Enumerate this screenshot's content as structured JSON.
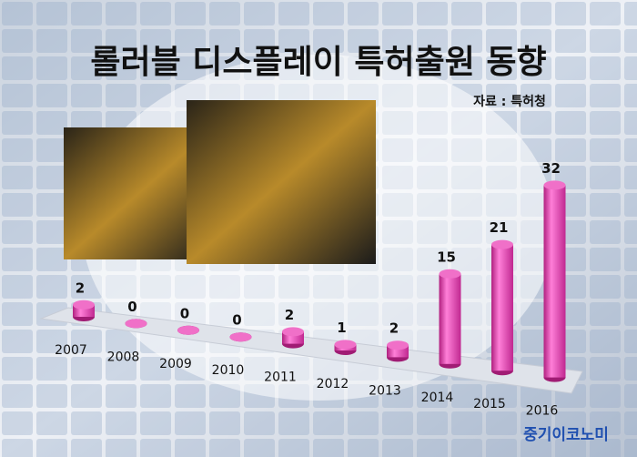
{
  "chart_data": {
    "type": "bar",
    "title": "롤러블 디스플레이 특허출원 동향",
    "source": "자료 : 특허청",
    "watermark": "중기이코노미",
    "categories": [
      "2007",
      "2008",
      "2009",
      "2010",
      "2011",
      "2012",
      "2013",
      "2014",
      "2015",
      "2016"
    ],
    "values": [
      2,
      0,
      0,
      0,
      2,
      1,
      2,
      15,
      21,
      32
    ],
    "color": "#e040b0"
  }
}
